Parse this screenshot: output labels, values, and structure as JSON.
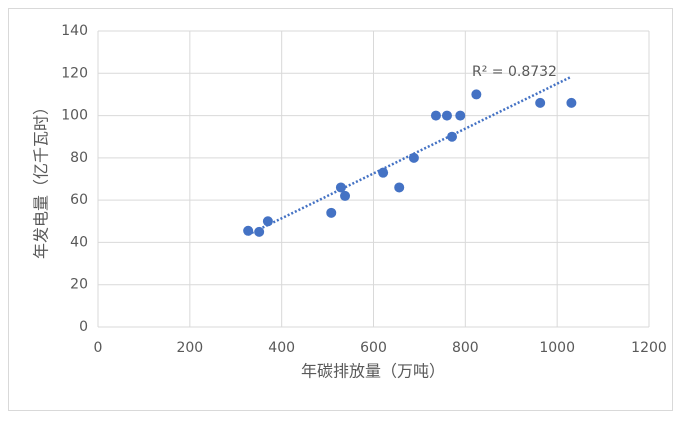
{
  "chart_data": {
    "type": "scatter",
    "x_label": "年碳排放量（万吨）",
    "y_label": "年发电量（亿千瓦时）",
    "annotation": "R² = 0.8732",
    "trendline": true,
    "color": "#4472c4",
    "x": [
      327,
      351,
      370,
      508,
      529,
      538,
      621,
      656,
      688,
      736,
      760,
      771,
      789,
      824,
      963,
      1031
    ],
    "values": [
      45.5,
      45,
      50,
      54,
      66,
      62,
      73,
      66,
      80,
      100,
      100,
      90,
      100,
      110,
      106,
      106
    ],
    "xlim": [
      0,
      1200
    ],
    "xticks": [
      0,
      200,
      400,
      600,
      800,
      1000,
      1200
    ],
    "ylim": [
      0,
      140
    ],
    "yticks": [
      0,
      20,
      40,
      60,
      80,
      100,
      120,
      140
    ],
    "grid": true
  }
}
